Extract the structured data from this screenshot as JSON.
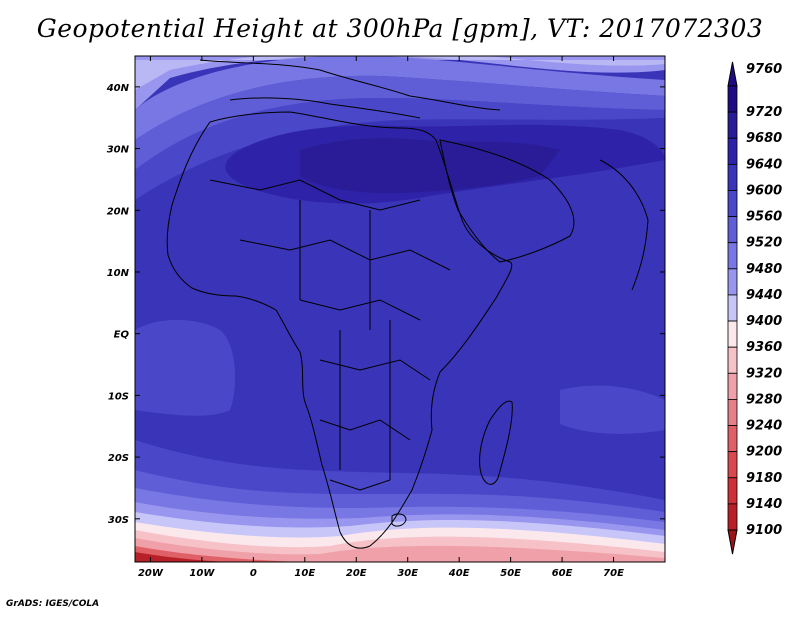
{
  "title": "Geopotential Height at 300hPa [gpm], VT: 2017072303",
  "credit": "GrADS: IGES/COLA",
  "map": {
    "lon_range": [
      -23,
      80
    ],
    "lat_range": [
      -37,
      45
    ],
    "lon_ticks": [
      {
        "value": -20,
        "label": "20W"
      },
      {
        "value": -10,
        "label": "10W"
      },
      {
        "value": 0,
        "label": "0"
      },
      {
        "value": 10,
        "label": "10E"
      },
      {
        "value": 20,
        "label": "20E"
      },
      {
        "value": 30,
        "label": "30E"
      },
      {
        "value": 40,
        "label": "40E"
      },
      {
        "value": 50,
        "label": "50E"
      },
      {
        "value": 60,
        "label": "60E"
      },
      {
        "value": 70,
        "label": "70E"
      }
    ],
    "lat_ticks": [
      {
        "value": 40,
        "label": "40N"
      },
      {
        "value": 30,
        "label": "30N"
      },
      {
        "value": 20,
        "label": "20N"
      },
      {
        "value": 10,
        "label": "10N"
      },
      {
        "value": 0,
        "label": "EQ"
      },
      {
        "value": -10,
        "label": "10S"
      },
      {
        "value": -20,
        "label": "20S"
      },
      {
        "value": -30,
        "label": "30S"
      }
    ]
  },
  "colorbar": {
    "levels": [
      {
        "label": "9760",
        "color": "#1e0c82"
      },
      {
        "label": "9720",
        "color": "#2a1c96"
      },
      {
        "label": "9680",
        "color": "#2e23a8"
      },
      {
        "label": "9640",
        "color": "#3a34b8"
      },
      {
        "label": "9600",
        "color": "#4a47c8"
      },
      {
        "label": "9560",
        "color": "#5f5ed6"
      },
      {
        "label": "9520",
        "color": "#7877e3"
      },
      {
        "label": "9480",
        "color": "#9896ee"
      },
      {
        "label": "9440",
        "color": "#c8c6f8"
      },
      {
        "label": "9400",
        "color": "#fae8ec"
      },
      {
        "label": "9360",
        "color": "#f6c2c8"
      },
      {
        "label": "9320",
        "color": "#f0a0a8"
      },
      {
        "label": "9280",
        "color": "#e88088"
      },
      {
        "label": "9240",
        "color": "#e06068"
      },
      {
        "label": "9200",
        "color": "#d8484e"
      },
      {
        "label": "9180",
        "color": "#cc3038"
      },
      {
        "label": "9140",
        "color": "#b82028"
      },
      {
        "label": "9100",
        "color": "#9a1418"
      }
    ]
  }
}
